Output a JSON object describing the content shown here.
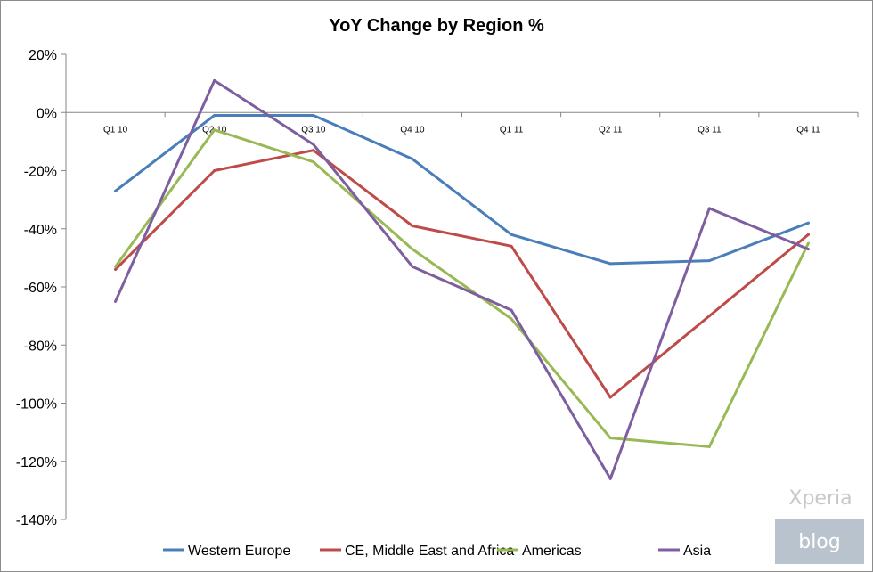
{
  "chart_data": {
    "type": "line",
    "title": "YoY Change by Region %",
    "xlabel": "",
    "ylabel": "",
    "categories": [
      "Q1 10",
      "Q2 10",
      "Q3 10",
      "Q4 10",
      "Q1 11",
      "Q2 11",
      "Q3 11",
      "Q4 11"
    ],
    "ylim": [
      -140,
      20
    ],
    "yticks": [
      20,
      0,
      -20,
      -40,
      -60,
      -80,
      -100,
      -120,
      -140
    ],
    "ytick_labels": [
      "20%",
      "0%",
      "-20%",
      "-40%",
      "-60%",
      "-80%",
      "-100%",
      "-120%",
      "-140%"
    ],
    "grid": false,
    "legend_position": "bottom",
    "series": [
      {
        "name": "Western Europe",
        "color": "#4a7ebb",
        "values": [
          -27,
          -1,
          -1,
          -16,
          -42,
          -52,
          -51,
          -38
        ]
      },
      {
        "name": "CE, Middle East and Africa",
        "color": "#be4b48",
        "values": [
          -54,
          -20,
          -13,
          -39,
          -46,
          -98,
          -70,
          -42
        ]
      },
      {
        "name": "Americas",
        "color": "#98b954",
        "values": [
          -53,
          -6,
          -17,
          -47,
          -71,
          -112,
          -115,
          -45
        ]
      },
      {
        "name": "Asia",
        "color": "#7d5fa0",
        "values": [
          -65,
          11,
          -11,
          -53,
          -68,
          -126,
          -33,
          -47
        ]
      }
    ]
  },
  "watermark": {
    "line1": "Xperia",
    "line2": "blog"
  }
}
